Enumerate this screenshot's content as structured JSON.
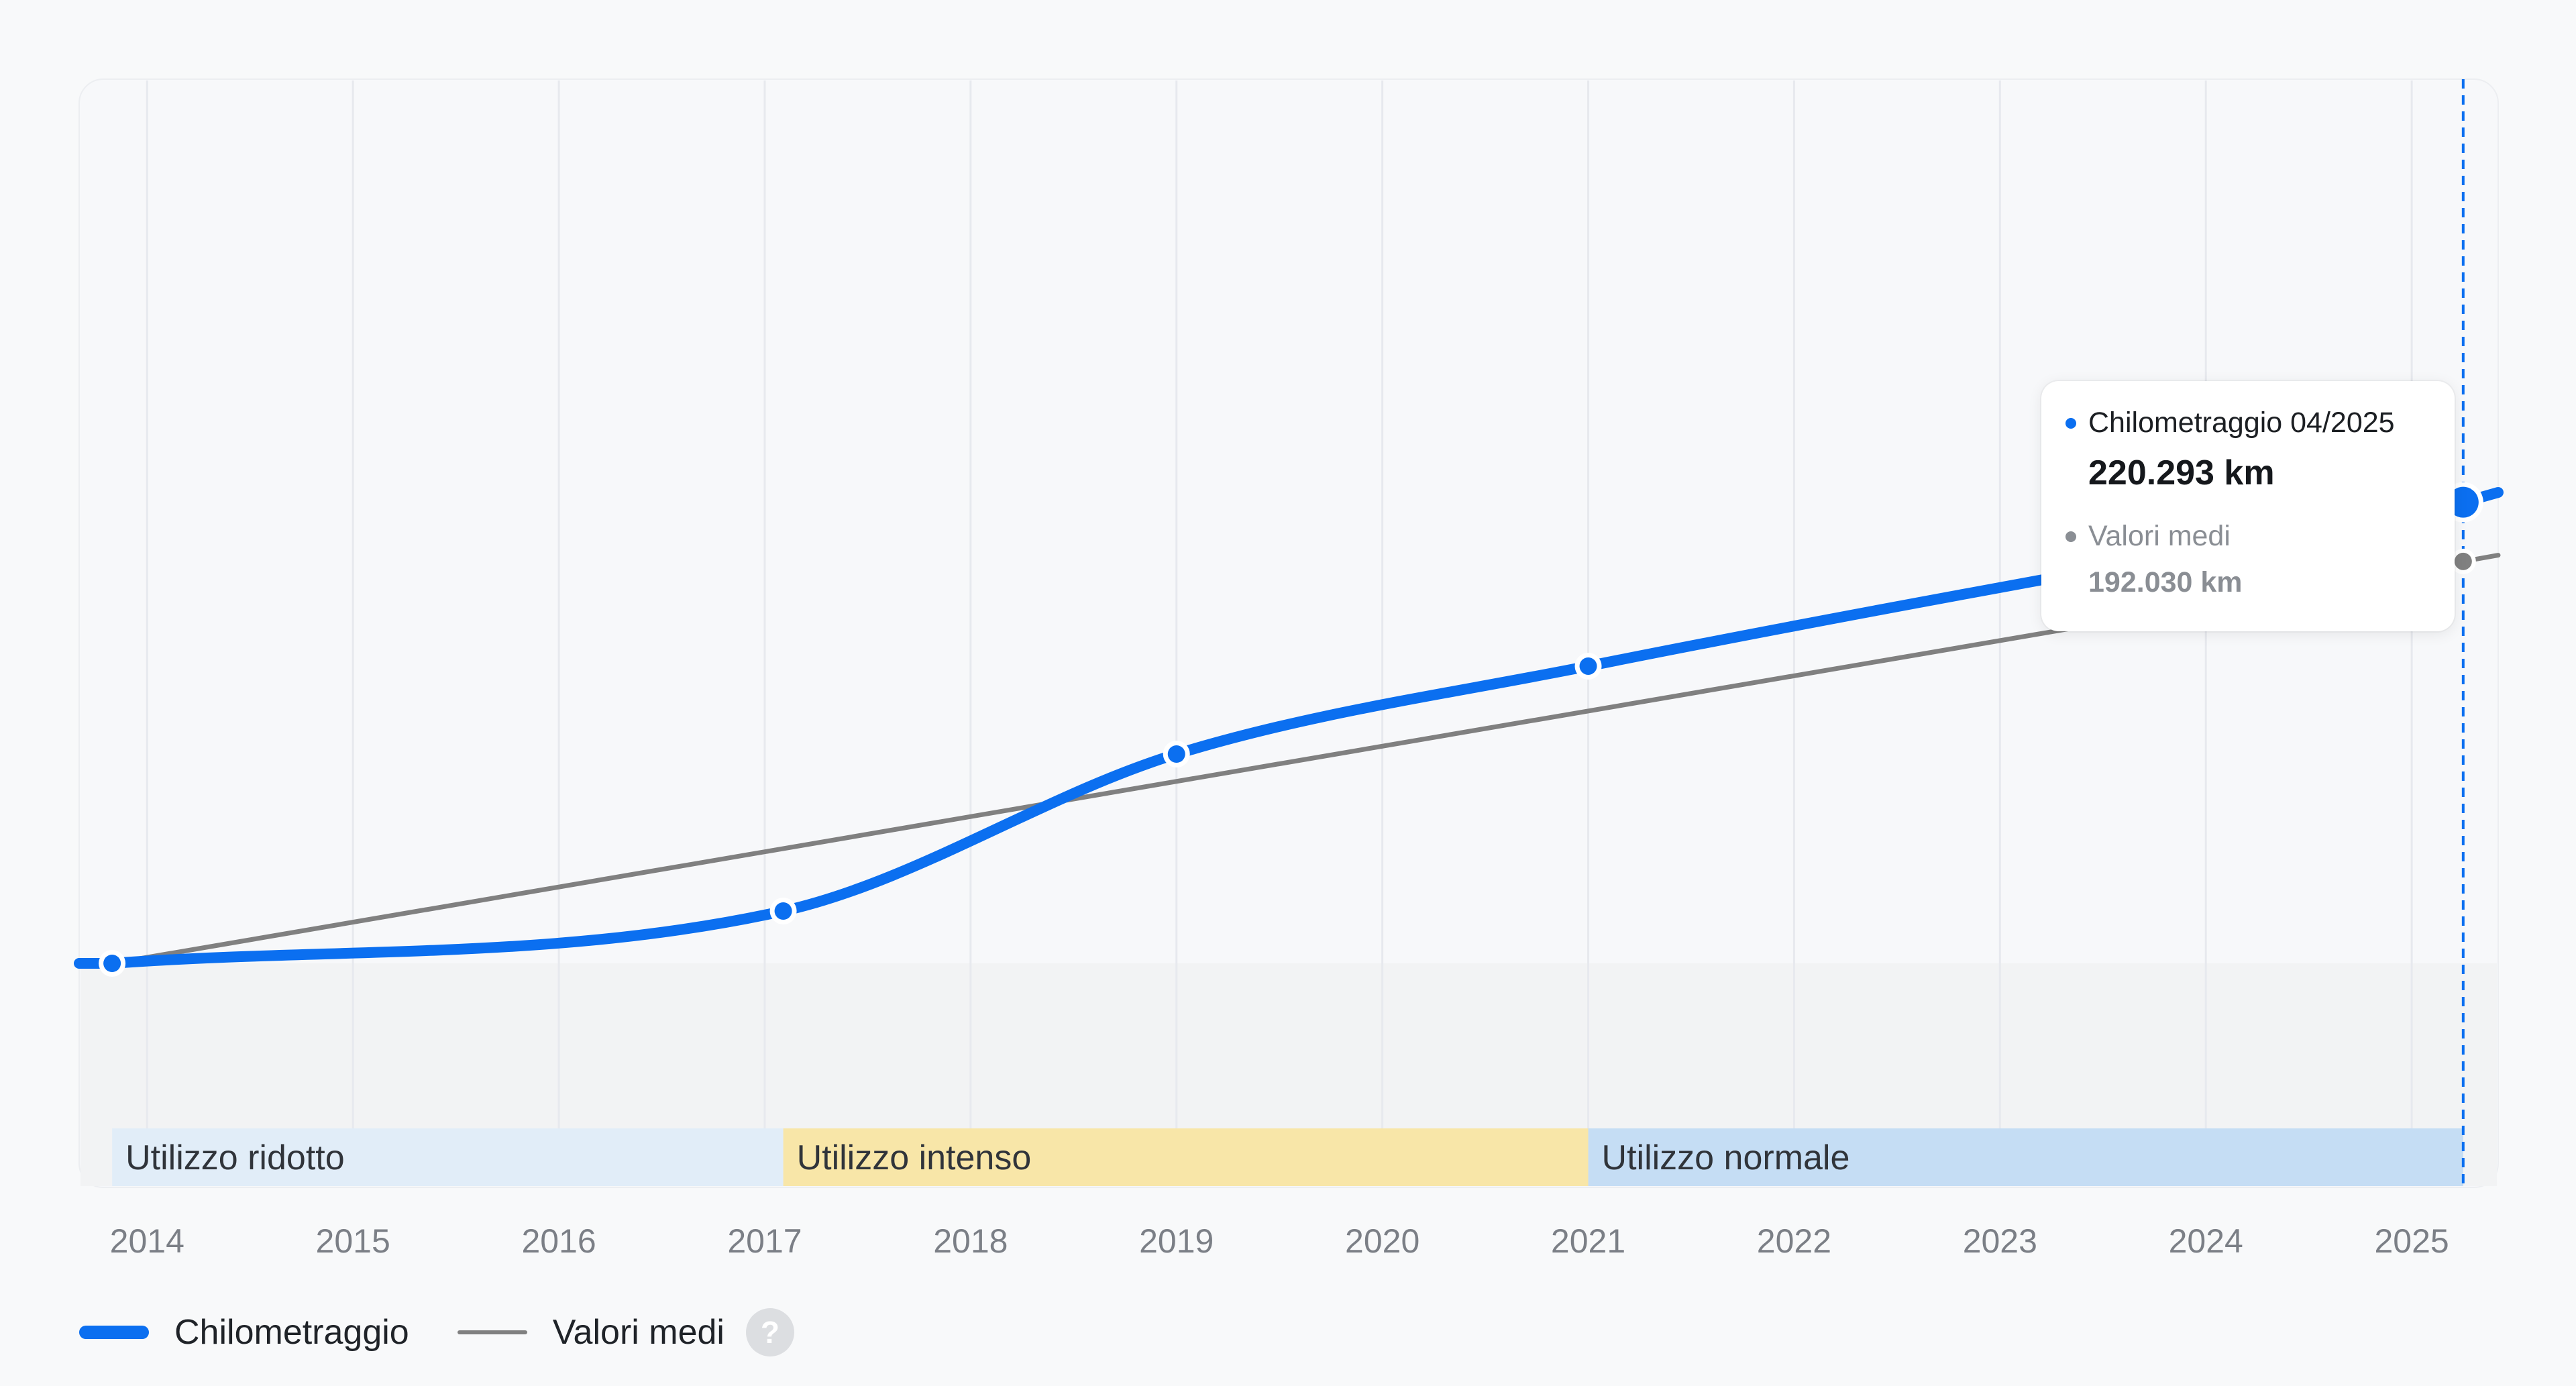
{
  "chart_data": {
    "type": "line",
    "xlabel": "",
    "ylabel": "",
    "x_ticks": [
      "2014",
      "2015",
      "2016",
      "2017",
      "2018",
      "2019",
      "2020",
      "2021",
      "2022",
      "2023",
      "2024",
      "2025"
    ],
    "xlim": [
      2013.67,
      2025.42
    ],
    "ylim": [
      0,
      300000
    ],
    "grid": true,
    "series": [
      {
        "name": "Chilometraggio",
        "color": "#0b6ff0",
        "points": [
          [
            2013.83,
            0
          ],
          [
            2017.09,
            25000
          ],
          [
            2019.0,
            100000
          ],
          [
            2021.0,
            142000
          ],
          [
            2025.25,
            220293
          ]
        ],
        "extend_to": [
          2025.42,
          225000
        ]
      },
      {
        "name": "Valori medi",
        "color": "#808080",
        "points": [
          [
            2013.83,
            0
          ],
          [
            2025.25,
            192030
          ]
        ],
        "extend_to": [
          2025.42,
          195000
        ]
      }
    ],
    "bands": [
      {
        "label": "Utilizzo ridotto",
        "from": 2013.83,
        "to": 2017.09,
        "color": "#e1edf8"
      },
      {
        "label": "Utilizzo intenso",
        "from": 2017.09,
        "to": 2021.0,
        "color": "#f8e6a8"
      },
      {
        "label": "Utilizzo normale",
        "from": 2021.0,
        "to": 2025.25,
        "color": "#c5ddf4"
      }
    ],
    "cursor": 2025.25
  },
  "tooltip": {
    "series_label": "Chilometraggio 04/2025",
    "series_value": "220.293 km",
    "avg_label": "Valori medi",
    "avg_value": "192.030 km"
  },
  "legend": {
    "mileage_label": "Chilometraggio",
    "average_label": "Valori medi",
    "help_symbol": "?"
  },
  "colors": {
    "accent": "#0b6ff0",
    "average": "#808080"
  }
}
